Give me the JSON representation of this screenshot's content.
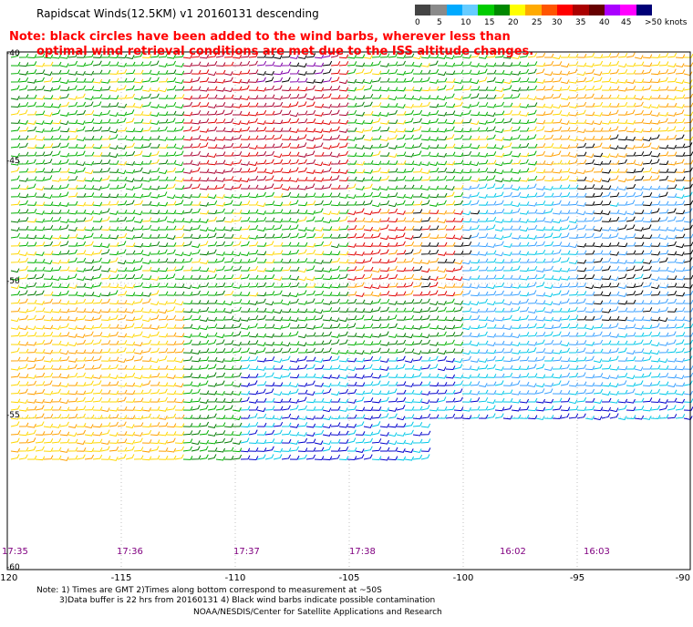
{
  "title": "Rapidscat Winds(12.5KM)  v1  20160131  descending",
  "note": {
    "line1": "Note: black circles have been added to the wind barbs, wherever less than",
    "line2": "optimal wind retrieval conditions are met due to the ISS altitude changes."
  },
  "legend": {
    "colors": [
      "#444444",
      "#8a8a8a",
      "#00aaff",
      "#66ccff",
      "#00cc00",
      "#008800",
      "#ffff00",
      "#ffaa00",
      "#ff5500",
      "#ff0000",
      "#aa0000",
      "#660000",
      "#aa00ff",
      "#ff00ff",
      "#000077"
    ],
    "labels": [
      "0",
      "5",
      "10",
      "15",
      "20",
      "25",
      "30",
      "35",
      "40",
      "45",
      ">50 knots"
    ]
  },
  "axes": {
    "lon_labels": [
      "-120",
      "-115",
      "-110",
      "-105",
      "-100",
      "-95",
      "-90"
    ],
    "lat_labels": [
      "-40",
      "-45",
      "-50",
      "-55",
      "-60"
    ]
  },
  "times": [
    "17:35",
    "17:36",
    "17:37",
    "17:38",
    "16:02",
    "16:03"
  ],
  "footer": {
    "line1": "Note: 1) Times are GMT 2)Times along bottom correspond to measurement at ~50S",
    "line2": "3)Data buffer is 22 hrs from 20160131 4) Black wind barbs indicate possible contamination",
    "line3": "NOAA/NESDIS/Center for Satellite Applications and Research"
  }
}
